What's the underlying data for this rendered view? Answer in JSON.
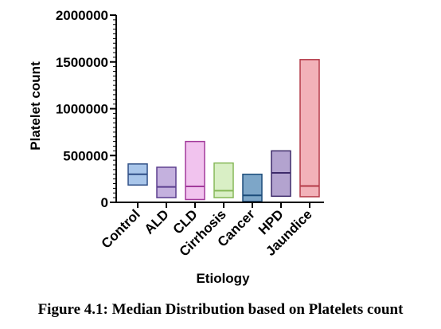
{
  "chart_data": {
    "type": "box",
    "xlabel": "Etiology",
    "ylabel": "Platelet count",
    "ylim": [
      0,
      2000000
    ],
    "yticks": [
      0,
      500000,
      1000000,
      1500000,
      2000000
    ],
    "ytick_labels": [
      "0",
      "500000",
      "1000000",
      "1500000",
      "2000000"
    ],
    "minor_ticks_per_major": 10,
    "categories": [
      "Control",
      "ALD",
      "CLD",
      "Cirrhosis",
      "Cancer",
      "HPD",
      "Jaundice"
    ],
    "boxes": [
      {
        "category": "Control",
        "low": 185000,
        "median": 300000,
        "high": 410000,
        "fill": "#a9c6ea",
        "stroke": "#2f4f86"
      },
      {
        "category": "ALD",
        "low": 50000,
        "median": 165000,
        "high": 375000,
        "fill": "#c4b1de",
        "stroke": "#5b3f8e"
      },
      {
        "category": "CLD",
        "low": 30000,
        "median": 170000,
        "high": 650000,
        "fill": "#f1c3ee",
        "stroke": "#a23a9b"
      },
      {
        "category": "Cirrhosis",
        "low": 50000,
        "median": 125000,
        "high": 420000,
        "fill": "#d9efc5",
        "stroke": "#86b858"
      },
      {
        "category": "Cancer",
        "low": 10000,
        "median": 75000,
        "high": 300000,
        "fill": "#7da6c8",
        "stroke": "#1c4c7a"
      },
      {
        "category": "HPD",
        "low": 65000,
        "median": 315000,
        "high": 550000,
        "fill": "#b3a3cf",
        "stroke": "#3d2a6a"
      },
      {
        "category": "Jaundice",
        "low": 60000,
        "median": 175000,
        "high": 1525000,
        "fill": "#f2b2b9",
        "stroke": "#b43a48"
      }
    ],
    "grid": false,
    "legend": "none"
  },
  "caption": "Figure 4.1: Median Distribution based on Platelets count"
}
